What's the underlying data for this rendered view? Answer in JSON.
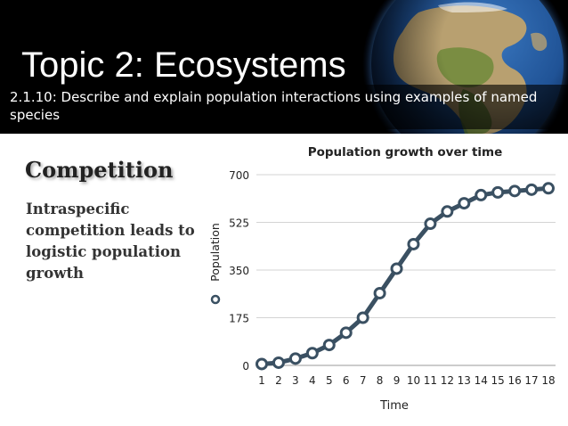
{
  "slide": {
    "title": "Topic 2: Ecosystems",
    "subtitle": "2.1.10: Describe and explain population interactions using examples of named species",
    "heading": "Competition",
    "body": "Intraspecific competition leads to logistic population growth"
  },
  "colors": {
    "header_bg": "#000000",
    "line": "#3a5062",
    "marker_fill": "#ffffff",
    "grid": "#d3d3d3",
    "text": "#222222"
  },
  "chart_data": {
    "type": "line",
    "title": "Population growth over time",
    "xlabel": "Time",
    "ylabel": "Population",
    "categories": [
      "1",
      "2",
      "3",
      "4",
      "5",
      "6",
      "7",
      "8",
      "9",
      "10",
      "11",
      "12",
      "13",
      "14",
      "15",
      "16",
      "17",
      "18"
    ],
    "yticks": [
      0,
      175,
      350,
      525,
      700
    ],
    "ylim": [
      0,
      700
    ],
    "grid": true,
    "legend": "left",
    "series": [
      {
        "values": [
          5,
          10,
          25,
          45,
          75,
          120,
          175,
          265,
          355,
          445,
          520,
          565,
          595,
          625,
          635,
          640,
          645,
          650
        ]
      }
    ]
  }
}
